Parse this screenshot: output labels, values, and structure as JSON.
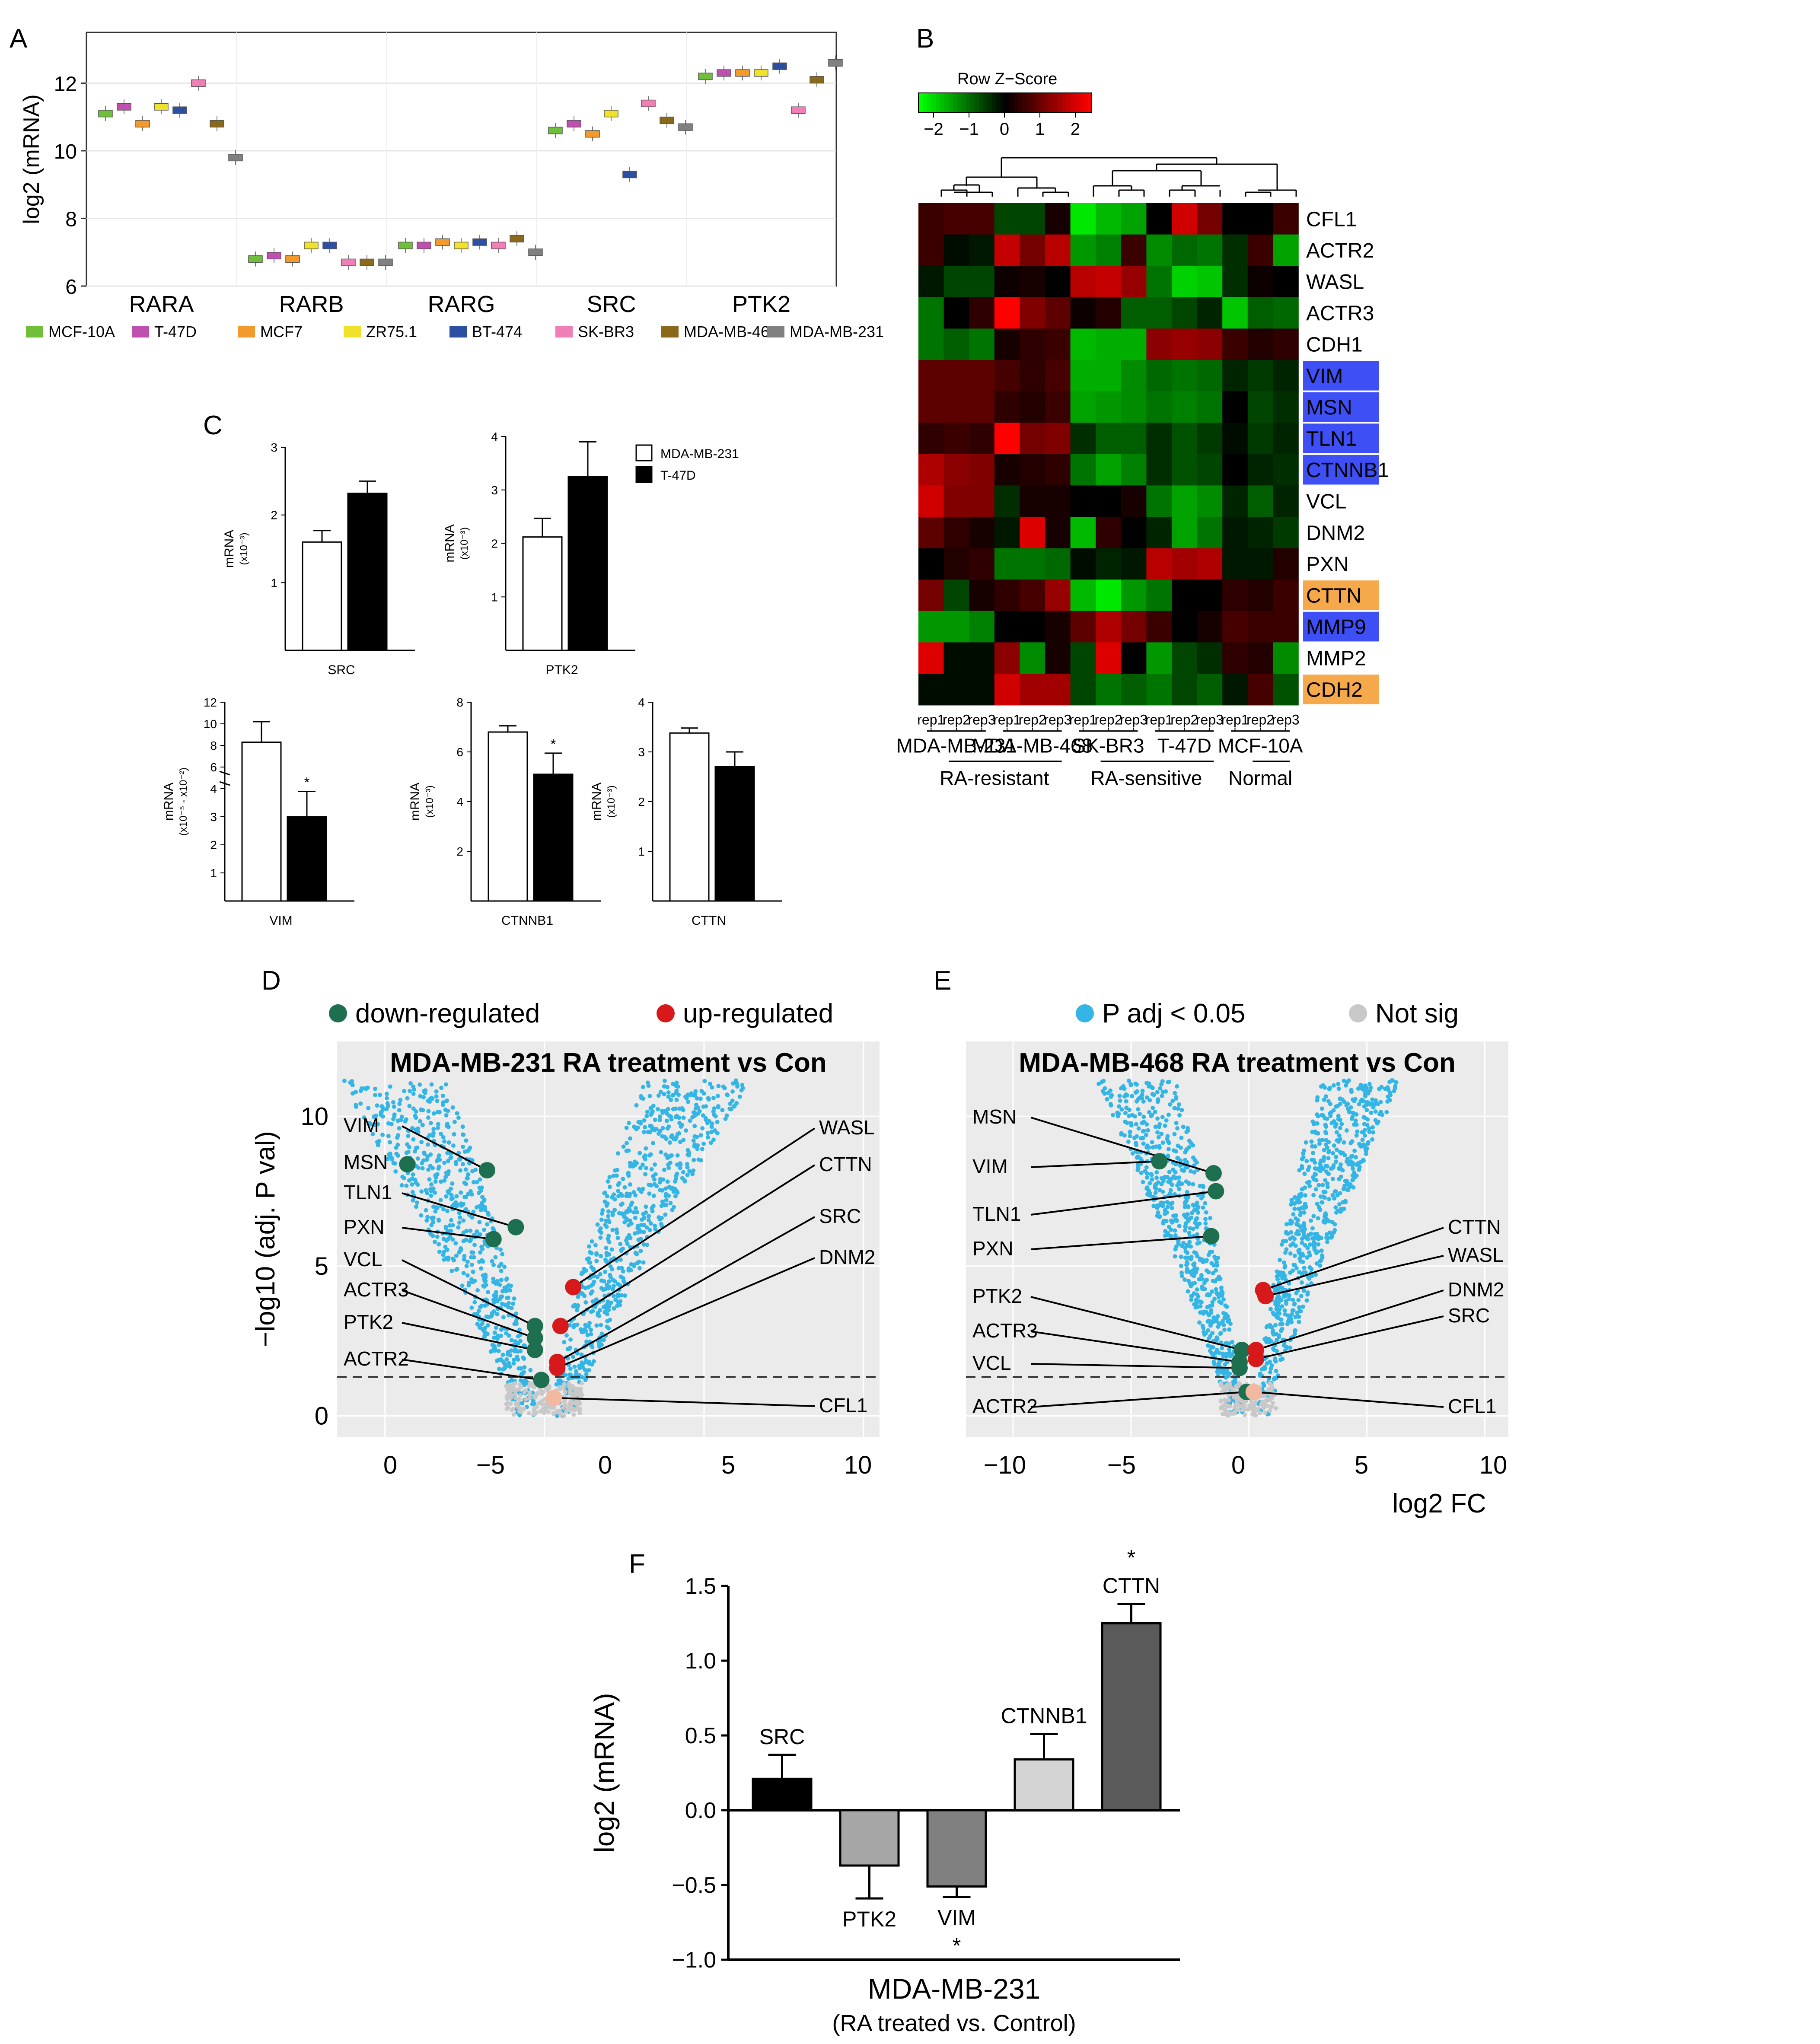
{
  "chart_data": [
    {
      "panel": "A",
      "type": "box",
      "ylabel": "log2 (mRNA)",
      "ylim": [
        6,
        13.5
      ],
      "yticks": [
        6,
        8,
        10,
        12
      ],
      "categories": [
        "RARA",
        "RARB",
        "RARG",
        "SRC",
        "PTK2"
      ],
      "legend": [
        "MCF-10A",
        "T-47D",
        "MCF7",
        "ZR75.1",
        "BT-474",
        "SK-BR3",
        "MDA-MB-468",
        "MDA-MB-231"
      ],
      "colors": [
        "#6fbf3a",
        "#c050b0",
        "#f39a2f",
        "#f0e22a",
        "#2c4ea3",
        "#f07fb5",
        "#8a6a1a",
        "#808080"
      ],
      "series": [
        {
          "name": "MCF-10A",
          "medians": [
            11.1,
            6.8,
            7.2,
            10.6,
            12.2
          ]
        },
        {
          "name": "T-47D",
          "medians": [
            11.3,
            6.9,
            7.2,
            10.8,
            12.3
          ]
        },
        {
          "name": "MCF7",
          "medians": [
            10.8,
            6.8,
            7.3,
            10.5,
            12.3
          ]
        },
        {
          "name": "ZR75.1",
          "medians": [
            11.3,
            7.2,
            7.2,
            11.1,
            12.3
          ]
        },
        {
          "name": "BT-474",
          "medians": [
            11.2,
            7.2,
            7.3,
            9.3,
            12.5
          ]
        },
        {
          "name": "SK-BR3",
          "medians": [
            12.0,
            6.7,
            7.2,
            11.4,
            11.2
          ]
        },
        {
          "name": "MDA-MB-468",
          "medians": [
            10.8,
            6.7,
            7.4,
            10.9,
            12.1
          ]
        },
        {
          "name": "MDA-MB-231",
          "medians": [
            9.8,
            6.7,
            7.0,
            10.7,
            12.6
          ]
        }
      ]
    },
    {
      "panel": "B",
      "type": "heatmap",
      "scale_title": "Row Z−Score",
      "scale_ticks": [
        "−2",
        "−1",
        "0",
        "1",
        "2"
      ],
      "rows": [
        "CFL1",
        "ACTR2",
        "WASL",
        "ACTR3",
        "CDH1",
        "VIM",
        "MSN",
        "TLN1",
        "CTNNB1",
        "VCL",
        "DNM2",
        "PXN",
        "CTTN",
        "MMP9",
        "MMP2",
        "CDH2"
      ],
      "row_highlight": [
        "",
        "",
        "",
        "",
        "",
        "#3d4ff5",
        "#3d4ff5",
        "#3d4ff5",
        "#3d4ff5",
        "",
        "",
        "",
        "#f5a94b",
        "#3d4ff5",
        "",
        "#f5a94b"
      ],
      "col_reps": [
        "rep1",
        "rep2",
        "rep3"
      ],
      "cell_lines": [
        "MDA-MB-231",
        "MDA-MB-468",
        "SK-BR3",
        "T-47D",
        "MCF-10A"
      ],
      "groups": [
        "RA-resistant",
        "RA-sensitive",
        "Normal"
      ],
      "values": [
        [
          0.5,
          0.6,
          0.6,
          -0.6,
          -0.6,
          0.2,
          -2.0,
          -1.6,
          -1.4,
          0.0,
          1.8,
          1.0,
          0.0,
          0.0,
          0.5
        ],
        [
          0.5,
          -0.1,
          -0.2,
          1.7,
          1.0,
          1.6,
          -1.3,
          -1.1,
          0.5,
          -1.2,
          -0.9,
          -1.0,
          -0.4,
          0.5,
          -1.4
        ],
        [
          -0.2,
          -0.6,
          -0.6,
          0.1,
          0.2,
          0.0,
          1.6,
          1.7,
          1.3,
          -1.0,
          -1.8,
          -1.7,
          -0.4,
          0.1,
          0.0
        ],
        [
          -1.0,
          0.0,
          0.4,
          2.6,
          1.1,
          0.8,
          0.1,
          0.3,
          -0.8,
          -0.8,
          -0.6,
          -0.3,
          -1.7,
          -0.8,
          -0.9
        ],
        [
          -1.0,
          -0.8,
          -1.0,
          0.2,
          0.4,
          0.5,
          -1.6,
          -1.5,
          -1.5,
          1.2,
          1.3,
          1.2,
          0.5,
          0.3,
          0.4
        ],
        [
          0.8,
          0.8,
          0.8,
          0.6,
          0.4,
          0.6,
          -1.5,
          -1.5,
          -1.2,
          -0.9,
          -1.0,
          -0.9,
          -0.3,
          -0.5,
          -0.3
        ],
        [
          0.8,
          0.8,
          0.8,
          0.4,
          0.3,
          0.5,
          -1.4,
          -1.3,
          -1.2,
          -1.0,
          -1.1,
          -1.0,
          0.0,
          -0.6,
          -0.4
        ],
        [
          0.4,
          0.5,
          0.4,
          2.2,
          1.0,
          1.1,
          -0.4,
          -0.8,
          -0.8,
          -0.4,
          -0.7,
          -0.5,
          -0.1,
          -0.5,
          -0.3
        ],
        [
          1.5,
          1.2,
          1.1,
          0.2,
          0.3,
          0.4,
          -1.0,
          -1.4,
          -1.1,
          -0.4,
          -0.7,
          -0.6,
          0.0,
          -0.3,
          -0.4
        ],
        [
          1.8,
          1.1,
          1.1,
          -0.4,
          0.2,
          0.2,
          0.0,
          0.0,
          0.2,
          -1.0,
          -1.4,
          -1.2,
          -0.3,
          -0.8,
          -0.3
        ],
        [
          0.8,
          0.4,
          0.2,
          -0.2,
          1.9,
          0.2,
          -1.6,
          0.4,
          0.0,
          -0.3,
          -1.4,
          -1.0,
          -0.2,
          -0.3,
          -0.5
        ],
        [
          0.0,
          0.3,
          0.4,
          -1.0,
          -1.0,
          -0.9,
          -0.1,
          -0.3,
          -0.2,
          1.6,
          1.4,
          1.5,
          -0.2,
          -0.2,
          0.3
        ],
        [
          1.0,
          -0.6,
          0.2,
          0.4,
          0.6,
          1.3,
          -1.6,
          -2.0,
          -1.3,
          -1.0,
          0.0,
          0.0,
          0.4,
          0.3,
          0.5
        ],
        [
          -1.3,
          -1.3,
          -1.1,
          0.0,
          0.0,
          0.2,
          0.8,
          1.5,
          1.0,
          0.5,
          0.0,
          0.2,
          0.6,
          0.5,
          0.5
        ],
        [
          1.9,
          -0.1,
          -0.1,
          1.2,
          -1.2,
          0.2,
          -0.6,
          1.9,
          0.0,
          -1.3,
          -0.6,
          -0.4,
          0.4,
          0.3,
          -1.2
        ],
        [
          -0.1,
          -0.1,
          -0.1,
          1.8,
          1.4,
          1.4,
          -0.6,
          -1.0,
          -0.8,
          -1.0,
          -0.6,
          -0.8,
          -0.2,
          0.6,
          -0.7
        ]
      ]
    },
    {
      "panel": "C",
      "type": "bar",
      "legend": [
        "MDA-MB-231",
        "T-47D"
      ],
      "subplots": [
        {
          "gene": "SRC",
          "ylabel": "mRNA",
          "yunit": "(x10⁻³)",
          "yticks": [
            "1",
            "2",
            "3"
          ],
          "ylim": [
            0,
            3
          ],
          "values": [
            1.6,
            2.32
          ],
          "errors": [
            0.17,
            0.18
          ],
          "sig": ""
        },
        {
          "gene": "PTK2",
          "ylabel": "mRNA",
          "yunit": "(x10⁻³)",
          "yticks": [
            "1",
            "2",
            "3",
            "4"
          ],
          "ylim": [
            0,
            4
          ],
          "values": [
            2.12,
            3.25
          ],
          "errors": [
            0.35,
            0.65
          ],
          "sig": ""
        },
        {
          "gene": "VIM",
          "ylabel": "mRNA",
          "yunit": "(x10⁻⁵ - x10⁻²)",
          "yticks": [
            "1",
            "2",
            "3",
            "4",
            "6",
            "8",
            "10",
            "12"
          ],
          "values": [
            8.3,
            3.0
          ],
          "errors": [
            1.9,
            0.9
          ],
          "sig": "*"
        },
        {
          "gene": "CTNNB1",
          "ylabel": "mRNA",
          "yunit": "(x10⁻³)",
          "yticks": [
            "2",
            "4",
            "6",
            "8"
          ],
          "ylim": [
            0,
            8
          ],
          "values": [
            6.8,
            5.1
          ],
          "errors": [
            0.25,
            0.85
          ],
          "sig": "*"
        },
        {
          "gene": "CTTN",
          "ylabel": "mRNA",
          "yunit": "(x10⁻³)",
          "yticks": [
            "1",
            "2",
            "3",
            "4"
          ],
          "ylim": [
            0,
            4
          ],
          "values": [
            3.38,
            2.7
          ],
          "errors": [
            0.1,
            0.3
          ],
          "sig": ""
        }
      ]
    },
    {
      "panel": "D",
      "type": "scatter",
      "title": "MDA-MB-231   RA treatment vs Con",
      "legend": [
        "down-regulated",
        "up-regulated"
      ],
      "ylabel": "−log10 (adj. P  val)",
      "xticks": [
        "0",
        "−5",
        "0",
        "5",
        "10"
      ],
      "yticks": [
        "0",
        "5",
        "10"
      ],
      "down_labels": [
        "VIM",
        "MSN",
        "TLN1",
        "PXN",
        "VCL",
        "ACTR3",
        "PTK2",
        "ACTR2"
      ],
      "down_points": [
        [
          -1.8,
          8.2
        ],
        [
          -4.3,
          8.4
        ],
        [
          -0.9,
          6.3
        ],
        [
          -1.6,
          5.9
        ],
        [
          -0.3,
          3.0
        ],
        [
          -0.3,
          2.6
        ],
        [
          -0.3,
          2.2
        ],
        [
          -0.1,
          1.2
        ]
      ],
      "up_labels": [
        "WASL",
        "CTTN",
        "SRC",
        "DNM2",
        "CFL1"
      ],
      "up_points": [
        [
          0.9,
          4.3
        ],
        [
          0.5,
          3.0
        ],
        [
          0.4,
          1.8
        ],
        [
          0.4,
          1.6
        ],
        [
          0.3,
          0.6
        ]
      ]
    },
    {
      "panel": "E",
      "type": "scatter",
      "title": "MDA-MB-468   RA treatment vs Con",
      "legend": [
        "P adj < 0.05",
        "Not sig"
      ],
      "xlabel": "log2 FC",
      "xticks": [
        "−10",
        "−5",
        "0",
        "5",
        "10"
      ],
      "down_labels": [
        "MSN",
        "VIM",
        "TLN1",
        "PXN",
        "PTK2",
        "ACTR3",
        "VCL",
        "ACTR2"
      ],
      "down_points": [
        [
          -1.5,
          8.1
        ],
        [
          -3.8,
          8.5
        ],
        [
          -1.4,
          7.5
        ],
        [
          -1.6,
          6.0
        ],
        [
          -0.3,
          2.2
        ],
        [
          -0.4,
          1.8
        ],
        [
          -0.4,
          1.6
        ],
        [
          -0.1,
          0.8
        ]
      ],
      "up_labels": [
        "CTTN",
        "WASL",
        "DNM2",
        "SRC",
        "CFL1"
      ],
      "up_points": [
        [
          0.6,
          4.2
        ],
        [
          0.7,
          4.0
        ],
        [
          0.3,
          2.2
        ],
        [
          0.3,
          1.9
        ],
        [
          0.2,
          0.8
        ]
      ]
    },
    {
      "panel": "F",
      "type": "bar",
      "ylabel": "log2 (mRNA)",
      "xlabel": "MDA-MB-231",
      "subtitle": "(RA treated vs. Control)",
      "ylim": [
        -1.0,
        1.5
      ],
      "yticks": [
        "−1.0",
        "−0.5",
        "0.0",
        "0.5",
        "1.0",
        "1.5"
      ],
      "categories": [
        "SRC",
        "PTK2",
        "VIM",
        "CTNNB1",
        "CTTN"
      ],
      "values": [
        0.21,
        -0.37,
        -0.51,
        0.34,
        1.25
      ],
      "errors": [
        0.16,
        0.22,
        0.07,
        0.17,
        0.13
      ],
      "sig": [
        "",
        "",
        "*",
        "",
        "*"
      ],
      "colors": [
        "#000000",
        "#a6a6a6",
        "#808080",
        "#d4d4d4",
        "#5a5a5a"
      ]
    }
  ],
  "panel_letters": [
    "A",
    "B",
    "C",
    "D",
    "E",
    "F"
  ]
}
